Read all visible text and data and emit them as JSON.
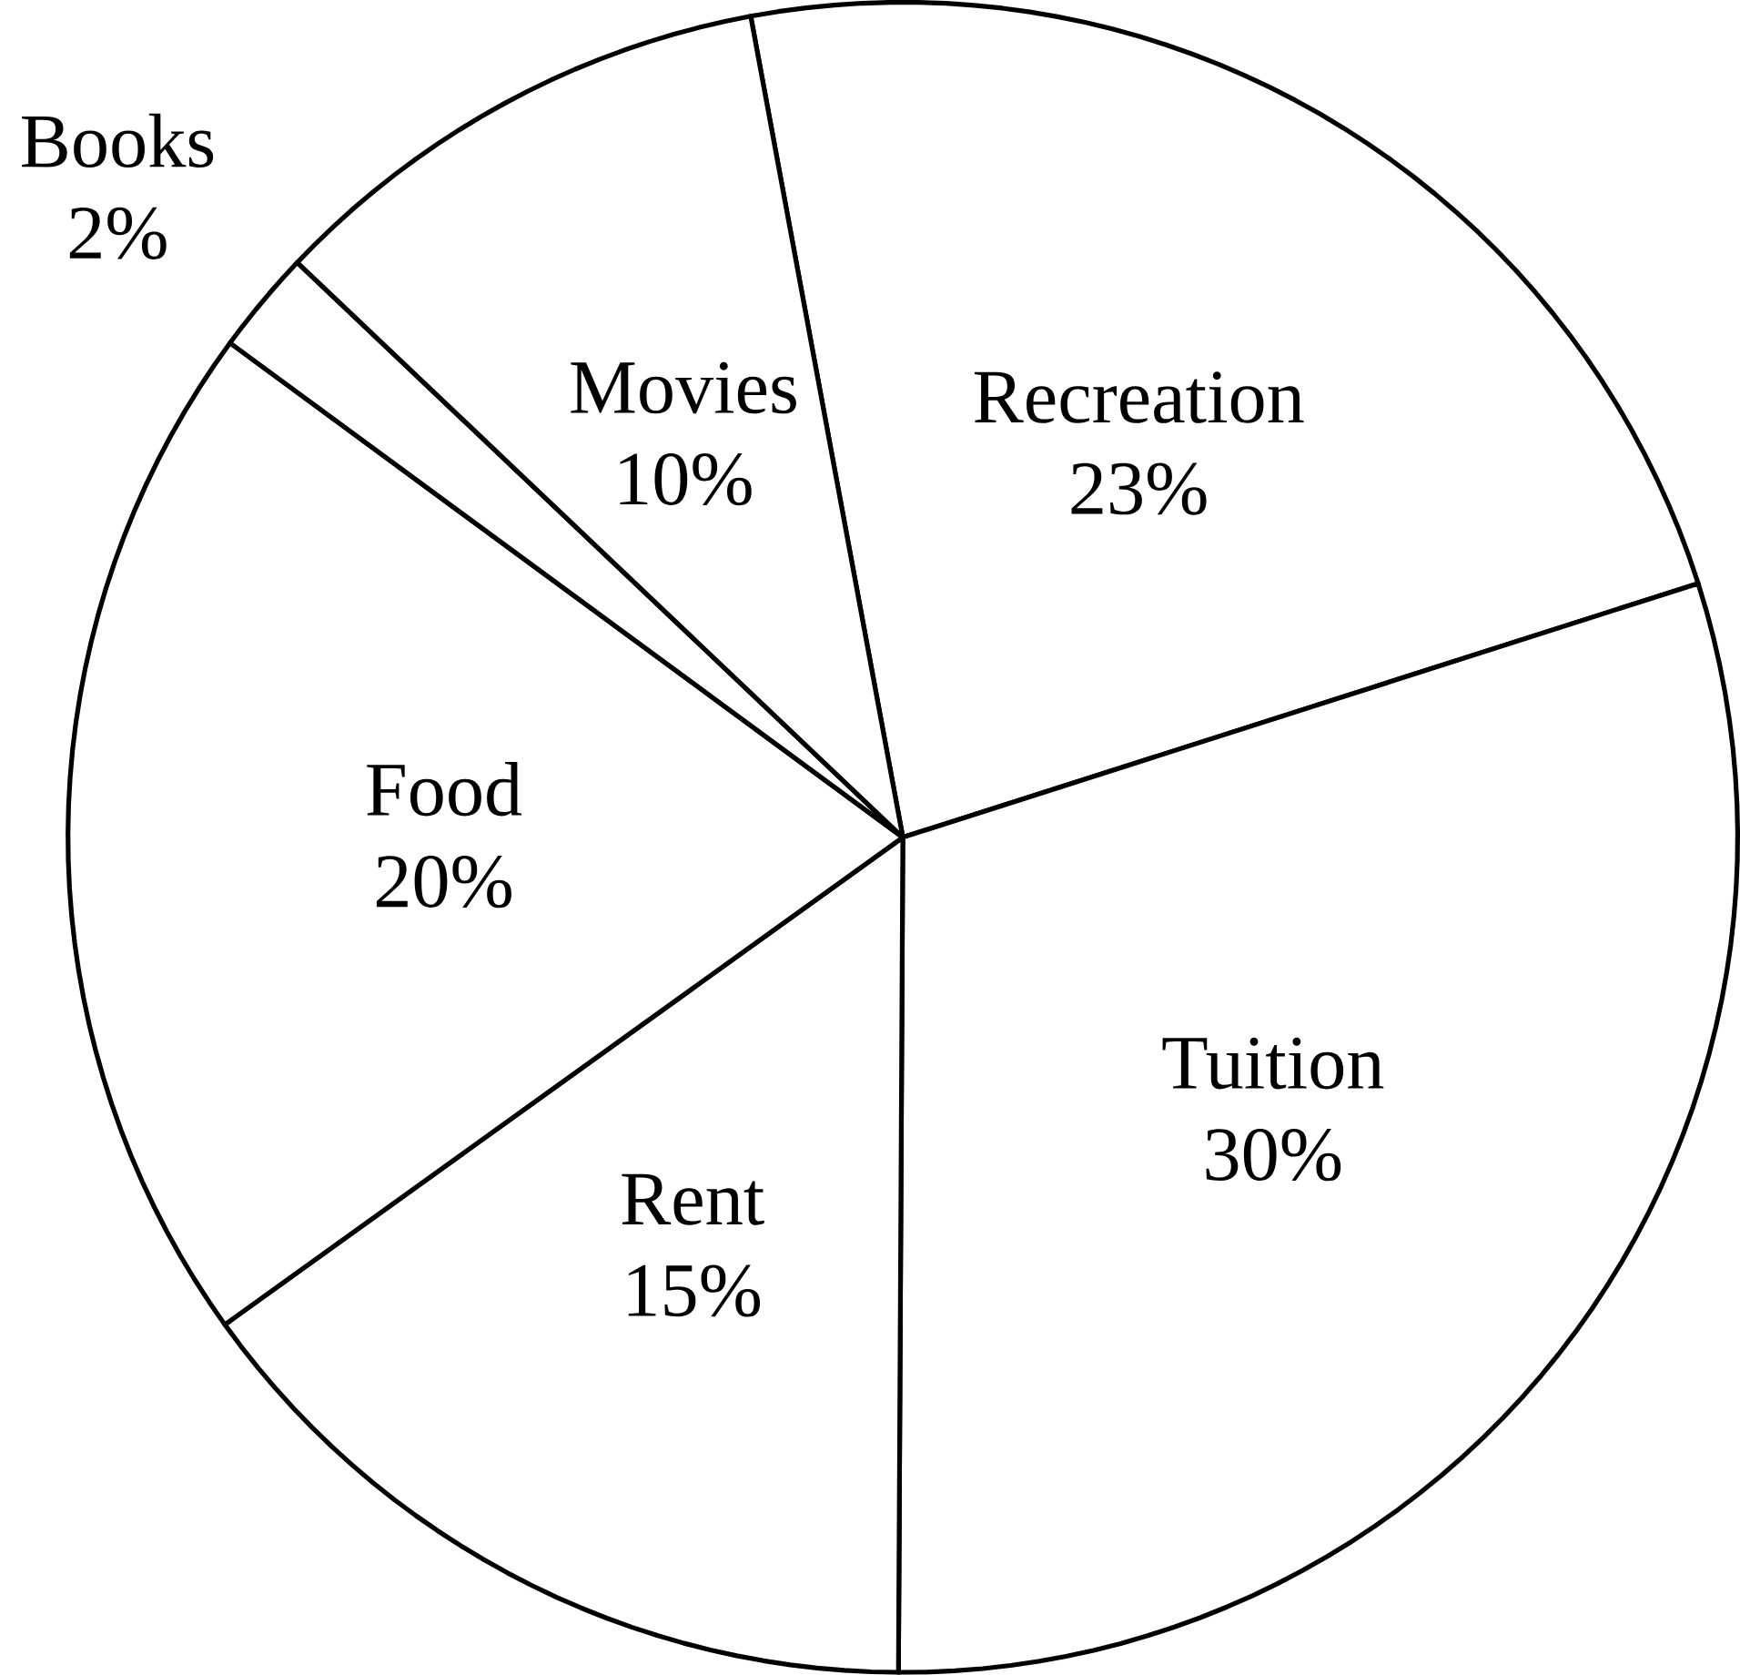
{
  "chart_data": {
    "type": "pie",
    "categories": [
      "Recreation",
      "Tuition",
      "Rent",
      "Food",
      "Books",
      "Movies"
    ],
    "values": [
      23,
      30,
      15,
      20,
      2,
      10
    ],
    "value_labels": [
      "23%",
      "30%",
      "15%",
      "20%",
      "2%",
      "10%"
    ],
    "colors": [
      "#ffffff",
      "#ffffff",
      "#ffffff",
      "#ffffff",
      "#ffffff",
      "#ffffff"
    ]
  }
}
